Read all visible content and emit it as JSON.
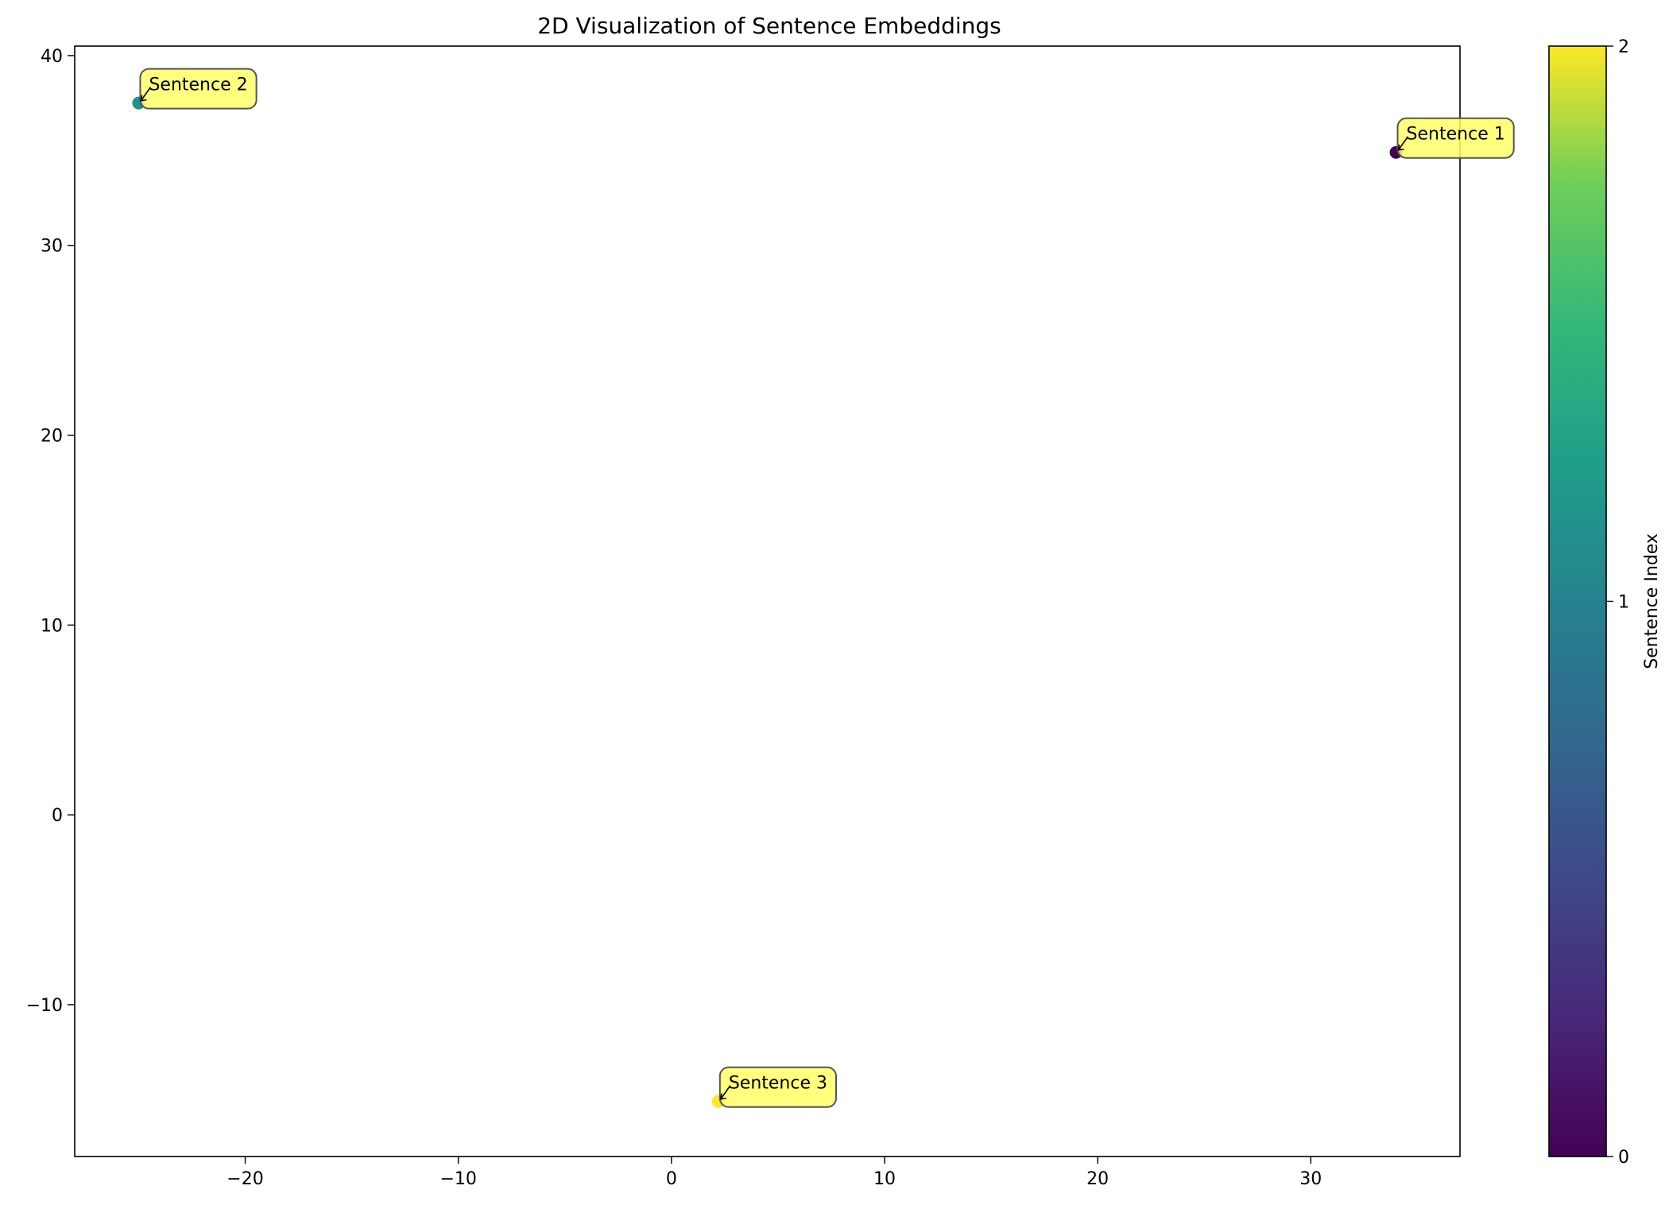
{
  "chart_data": {
    "type": "scatter",
    "title": "2D Visualization of Sentence Embeddings",
    "xlabel": "",
    "ylabel": "",
    "xlim": [
      -28,
      37
    ],
    "ylim": [
      -18,
      40.5
    ],
    "x_ticks": [
      -20,
      -10,
      0,
      10,
      20,
      30
    ],
    "y_ticks": [
      -10,
      0,
      10,
      20,
      30,
      40
    ],
    "grid": false,
    "points": [
      {
        "label": "Sentence 1",
        "x": 34.0,
        "y": 34.9,
        "color_value": 0,
        "color": "#440154"
      },
      {
        "label": "Sentence 2",
        "x": -25.0,
        "y": 37.5,
        "color_value": 1,
        "color": "#21918c"
      },
      {
        "label": "Sentence 3",
        "x": 2.2,
        "y": -15.1,
        "color_value": 2,
        "color": "#fde725"
      }
    ],
    "colorbar": {
      "label": "Sentence Index",
      "colormap": "viridis",
      "range": [
        0,
        2
      ],
      "ticks": [
        0,
        1,
        2
      ]
    },
    "annotation_style": {
      "box_color": "#ffff66",
      "edge_color": "#555555"
    }
  }
}
